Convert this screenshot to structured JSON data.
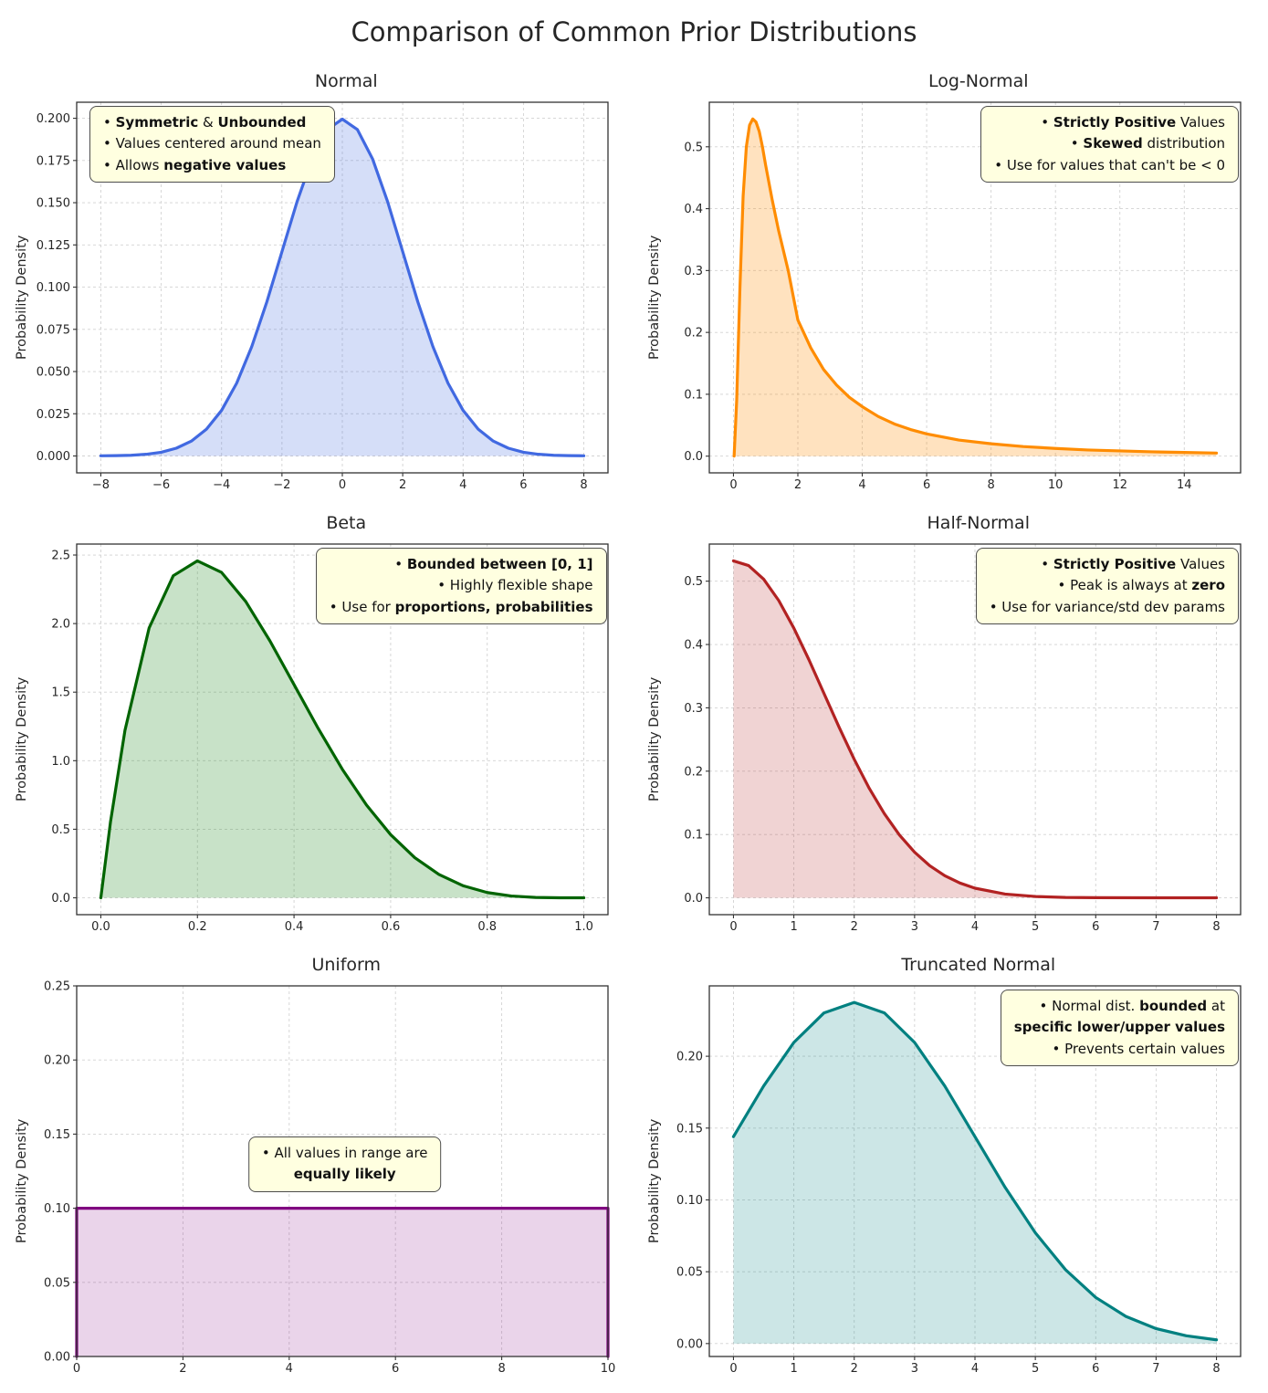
{
  "page": {
    "title": "Comparison of Common Prior Distributions"
  },
  "chart_data": [
    {
      "id": "normal",
      "type": "area",
      "title": "Normal",
      "ylabel": "Probability Density",
      "line_color": "#4169E1",
      "fill_color": "rgba(65,105,225,0.22)",
      "xlim": [
        -8.8,
        8.8
      ],
      "ylim": [
        -0.01,
        0.2095
      ],
      "grid": true,
      "x_ticks": {
        "values": [
          -8,
          -6,
          -4,
          -2,
          0,
          2,
          4,
          6,
          8
        ],
        "labels": [
          "−8",
          "−6",
          "−4",
          "−2",
          "0",
          "2",
          "4",
          "6",
          "8"
        ]
      },
      "y_ticks": {
        "values": [
          0,
          0.025,
          0.05,
          0.075,
          0.1,
          0.125,
          0.15,
          0.175,
          0.2
        ],
        "labels": [
          "0.000",
          "0.025",
          "0.050",
          "0.075",
          "0.100",
          "0.125",
          "0.150",
          "0.175",
          "0.200"
        ]
      },
      "x": [
        -8,
        -7.5,
        -7,
        -6.5,
        -6,
        -5.5,
        -5,
        -4.5,
        -4,
        -3.5,
        -3,
        -2.5,
        -2,
        -1.5,
        -1,
        -0.5,
        0,
        0.5,
        1,
        1.5,
        2,
        2.5,
        3,
        3.5,
        4,
        4.5,
        5,
        5.5,
        6,
        6.5,
        7,
        7.5,
        8
      ],
      "y": [
        0.0001,
        0.0002,
        0.0004,
        0.001,
        0.0022,
        0.0046,
        0.0088,
        0.0159,
        0.027,
        0.0431,
        0.0648,
        0.0913,
        0.121,
        0.1506,
        0.176,
        0.1933,
        0.1995,
        0.1933,
        0.176,
        0.1506,
        0.121,
        0.0913,
        0.0648,
        0.0431,
        0.027,
        0.0159,
        0.0088,
        0.0046,
        0.0022,
        0.001,
        0.0004,
        0.0002,
        0.0001
      ],
      "annotation": {
        "position": "top-left",
        "align": "left",
        "lines": [
          [
            {
              "t": "• ",
              "b": false
            },
            {
              "t": "Symmetric",
              "b": true
            },
            {
              "t": " & ",
              "b": false
            },
            {
              "t": "Unbounded",
              "b": true
            }
          ],
          [
            {
              "t": "• Values centered around mean",
              "b": false
            }
          ],
          [
            {
              "t": "• Allows ",
              "b": false
            },
            {
              "t": "negative values",
              "b": true
            }
          ]
        ]
      }
    },
    {
      "id": "lognormal",
      "type": "area",
      "title": "Log-Normal",
      "ylabel": "Probability Density",
      "line_color": "#FF8C00",
      "fill_color": "rgba(255,140,0,0.25)",
      "xlim": [
        -0.75,
        15.75
      ],
      "ylim": [
        -0.027,
        0.572
      ],
      "grid": true,
      "x_ticks": {
        "values": [
          0,
          2,
          4,
          6,
          8,
          10,
          12,
          14
        ],
        "labels": [
          "0",
          "2",
          "4",
          "6",
          "8",
          "10",
          "12",
          "14"
        ]
      },
      "y_ticks": {
        "values": [
          0,
          0.1,
          0.2,
          0.3,
          0.4,
          0.5
        ],
        "labels": [
          "0.0",
          "0.1",
          "0.2",
          "0.3",
          "0.4",
          "0.5"
        ]
      },
      "x": [
        0.02,
        0.1,
        0.2,
        0.3,
        0.4,
        0.5,
        0.6,
        0.7,
        0.8,
        0.9,
        1.0,
        1.2,
        1.4,
        1.7,
        2.0,
        2.4,
        2.8,
        3.2,
        3.6,
        4.0,
        4.5,
        5.0,
        5.5,
        6.0,
        7.0,
        8.0,
        9.0,
        10.0,
        11.0,
        12.0,
        13.0,
        14.0,
        15.0
      ],
      "y": [
        0.0,
        0.09,
        0.27,
        0.42,
        0.5,
        0.535,
        0.545,
        0.54,
        0.525,
        0.5,
        0.47,
        0.415,
        0.365,
        0.3,
        0.22,
        0.175,
        0.14,
        0.115,
        0.095,
        0.08,
        0.064,
        0.052,
        0.043,
        0.036,
        0.026,
        0.02,
        0.0155,
        0.0125,
        0.01,
        0.0085,
        0.007,
        0.006,
        0.005
      ],
      "annotation": {
        "position": "top-right",
        "align": "right",
        "lines": [
          [
            {
              "t": "• ",
              "b": false
            },
            {
              "t": "Strictly Positive",
              "b": true
            },
            {
              "t": " Values",
              "b": false
            }
          ],
          [
            {
              "t": "• ",
              "b": false
            },
            {
              "t": "Skewed",
              "b": true
            },
            {
              "t": " distribution",
              "b": false
            }
          ],
          [
            {
              "t": "• Use for values that can't be < 0",
              "b": false
            }
          ]
        ]
      }
    },
    {
      "id": "beta",
      "type": "area",
      "title": "Beta",
      "ylabel": "Probability Density",
      "line_color": "#006400",
      "fill_color": "rgba(34,139,34,0.25)",
      "xlim": [
        -0.05,
        1.05
      ],
      "ylim": [
        -0.123,
        2.58
      ],
      "grid": true,
      "x_ticks": {
        "values": [
          0,
          0.2,
          0.4,
          0.6,
          0.8,
          1.0
        ],
        "labels": [
          "0.0",
          "0.2",
          "0.4",
          "0.6",
          "0.8",
          "1.0"
        ]
      },
      "y_ticks": {
        "values": [
          0,
          0.5,
          1.0,
          1.5,
          2.0,
          2.5
        ],
        "labels": [
          "0.0",
          "0.5",
          "1.0",
          "1.5",
          "2.0",
          "2.5"
        ]
      },
      "x": [
        0,
        0.02,
        0.05,
        0.1,
        0.15,
        0.2,
        0.25,
        0.3,
        0.35,
        0.4,
        0.45,
        0.5,
        0.55,
        0.6,
        0.65,
        0.7,
        0.75,
        0.8,
        0.85,
        0.9,
        0.95,
        1.0
      ],
      "y": [
        0,
        0.5534,
        1.2218,
        1.9683,
        2.349,
        2.4576,
        2.373,
        2.1609,
        1.8743,
        1.5552,
        1.2353,
        0.9375,
        0.6766,
        0.4608,
        0.2926,
        0.1701,
        0.0879,
        0.0384,
        0.0129,
        0.0027,
        0.0002,
        0
      ],
      "annotation": {
        "position": "top-right",
        "align": "right",
        "lines": [
          [
            {
              "t": "• ",
              "b": false
            },
            {
              "t": "Bounded between [0, 1]",
              "b": true
            }
          ],
          [
            {
              "t": "• Highly flexible shape",
              "b": false
            }
          ],
          [
            {
              "t": "• Use for ",
              "b": false
            },
            {
              "t": "proportions, probabilities",
              "b": true
            }
          ]
        ]
      }
    },
    {
      "id": "halfnormal",
      "type": "area",
      "title": "Half-Normal",
      "ylabel": "Probability Density",
      "line_color": "#B22222",
      "fill_color": "rgba(178,34,34,0.2)",
      "xlim": [
        -0.4,
        8.4
      ],
      "ylim": [
        -0.0266,
        0.5586
      ],
      "grid": true,
      "x_ticks": {
        "values": [
          0,
          1,
          2,
          3,
          4,
          5,
          6,
          7,
          8
        ],
        "labels": [
          "0",
          "1",
          "2",
          "3",
          "4",
          "5",
          "6",
          "7",
          "8"
        ]
      },
      "y_ticks": {
        "values": [
          0,
          0.1,
          0.2,
          0.3,
          0.4,
          0.5
        ],
        "labels": [
          "0.0",
          "0.1",
          "0.2",
          "0.3",
          "0.4",
          "0.5"
        ]
      },
      "x": [
        0,
        0.25,
        0.5,
        0.75,
        1,
        1.25,
        1.5,
        1.75,
        2,
        2.25,
        2.5,
        2.75,
        3,
        3.25,
        3.5,
        3.75,
        4,
        4.5,
        5,
        5.5,
        6,
        7,
        8
      ],
      "y": [
        0.532,
        0.5246,
        0.5032,
        0.4694,
        0.4259,
        0.3759,
        0.3226,
        0.2693,
        0.2187,
        0.1727,
        0.1327,
        0.0991,
        0.072,
        0.0508,
        0.0349,
        0.0234,
        0.0152,
        0.0059,
        0.0021,
        0.0006,
        0.0002,
        0.0001,
        0.0001
      ],
      "annotation": {
        "position": "top-right",
        "align": "right",
        "lines": [
          [
            {
              "t": "• ",
              "b": false
            },
            {
              "t": "Strictly Positive",
              "b": true
            },
            {
              "t": " Values",
              "b": false
            }
          ],
          [
            {
              "t": "• Peak is always at ",
              "b": false
            },
            {
              "t": "zero",
              "b": true
            }
          ],
          [
            {
              "t": "• Use for variance/std dev params",
              "b": false
            }
          ]
        ]
      }
    },
    {
      "id": "uniform",
      "type": "area",
      "title": "Uniform",
      "ylabel": "Probability Density",
      "line_color": "#800080",
      "fill_color": "rgba(128,0,128,0.17)",
      "xlim": [
        0,
        10
      ],
      "ylim": [
        0,
        0.25
      ],
      "grid": true,
      "x_ticks": {
        "values": [
          0,
          2,
          4,
          6,
          8,
          10
        ],
        "labels": [
          "0",
          "2",
          "4",
          "6",
          "8",
          "10"
        ]
      },
      "y_ticks": {
        "values": [
          0,
          0.05,
          0.1,
          0.15,
          0.2,
          0.25
        ],
        "labels": [
          "0.00",
          "0.05",
          "0.10",
          "0.15",
          "0.20",
          "0.25"
        ]
      },
      "x": [
        0,
        0,
        10,
        10
      ],
      "y": [
        0,
        0.1,
        0.1,
        0
      ],
      "annotation": {
        "position": "center",
        "align": "center",
        "lines": [
          [
            {
              "t": "• All values in range are",
              "b": false
            }
          ],
          [
            {
              "t": "equally likely",
              "b": true
            }
          ]
        ]
      }
    },
    {
      "id": "truncnormal",
      "type": "area",
      "title": "Truncated Normal",
      "ylabel": "Probability Density",
      "line_color": "#008080",
      "fill_color": "rgba(0,128,128,0.2)",
      "xlim": [
        -0.4,
        8.4
      ],
      "ylim": [
        -0.009,
        0.249
      ],
      "grid": true,
      "x_ticks": {
        "values": [
          0,
          1,
          2,
          3,
          4,
          5,
          6,
          7,
          8
        ],
        "labels": [
          "0",
          "1",
          "2",
          "3",
          "4",
          "5",
          "6",
          "7",
          "8"
        ]
      },
      "y_ticks": {
        "values": [
          0,
          0.05,
          0.1,
          0.15,
          0.2
        ],
        "labels": [
          "0.00",
          "0.05",
          "0.10",
          "0.15",
          "0.20"
        ]
      },
      "x": [
        0,
        0.5,
        1,
        1.5,
        2,
        2.5,
        3,
        3.5,
        4,
        4.5,
        5,
        5.5,
        6,
        6.5,
        7,
        7.5,
        8
      ],
      "y": [
        0.144,
        0.1793,
        0.2096,
        0.2302,
        0.2375,
        0.2302,
        0.2096,
        0.1793,
        0.144,
        0.1087,
        0.0771,
        0.0514,
        0.0321,
        0.0189,
        0.0104,
        0.0054,
        0.0026
      ],
      "annotation": {
        "position": "top-right",
        "align": "right",
        "lines": [
          [
            {
              "t": "• Normal dist. ",
              "b": false
            },
            {
              "t": "bounded",
              "b": true
            },
            {
              "t": " at",
              "b": false
            }
          ],
          [
            {
              "t": "specific lower/upper values",
              "b": true
            }
          ],
          [
            {
              "t": "• Prevents certain values",
              "b": false
            }
          ]
        ]
      }
    }
  ]
}
